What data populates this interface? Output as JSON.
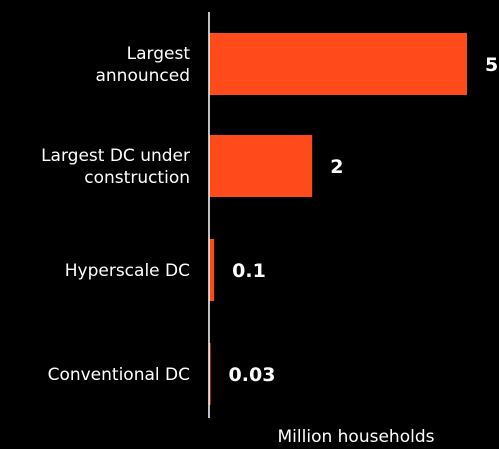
{
  "chart_data": {
    "type": "bar",
    "orientation": "horizontal",
    "categories": [
      "Largest\nannounced",
      "Largest DC under\nconstruction",
      "Hyperscale DC",
      "Conventional DC"
    ],
    "values": [
      5,
      2,
      0.1,
      0.03
    ],
    "value_labels": [
      "5",
      "2",
      "0.1",
      "0.03"
    ],
    "title": "",
    "xlabel": "Million households",
    "ylabel": "",
    "xlim": [
      0,
      5
    ],
    "grid": false,
    "legend": "none"
  },
  "colors": {
    "background": "#000000",
    "bar": "#FF4A1C",
    "text": "#ffffff",
    "axis": "#ffffff"
  }
}
